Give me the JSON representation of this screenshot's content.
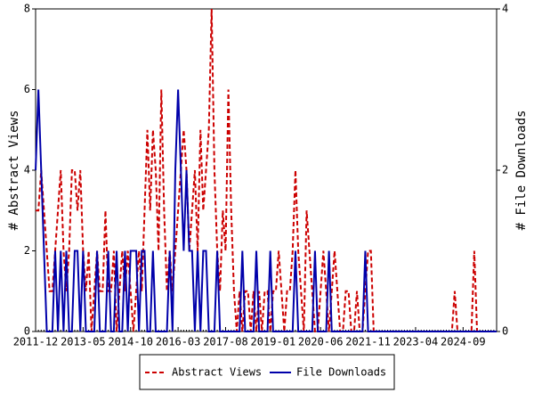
{
  "chart_data": {
    "type": "line",
    "categories": [
      "2011-12",
      null,
      null,
      null,
      null,
      null,
      null,
      null,
      null,
      null,
      null,
      null,
      null,
      null,
      null,
      null,
      null,
      "2013-05",
      null,
      null,
      null,
      null,
      null,
      null,
      null,
      null,
      null,
      null,
      null,
      null,
      null,
      null,
      null,
      null,
      "2014-10",
      null,
      null,
      null,
      null,
      null,
      null,
      null,
      null,
      null,
      null,
      null,
      null,
      null,
      null,
      null,
      null,
      "2016-03",
      null,
      null,
      null,
      null,
      null,
      null,
      null,
      null,
      null,
      null,
      null,
      null,
      null,
      null,
      null,
      null,
      "2017-08",
      null,
      null,
      null,
      null,
      null,
      null,
      null,
      null,
      null,
      null,
      null,
      null,
      null,
      null,
      null,
      null,
      "2019-01",
      null,
      null,
      null,
      null,
      null,
      null,
      null,
      null,
      null,
      null,
      null,
      null,
      null,
      null,
      null,
      null,
      "2020-06",
      null,
      null,
      null,
      null,
      null,
      null,
      null,
      null,
      null,
      null,
      null,
      null,
      null,
      null,
      null,
      null,
      "2021-11",
      null,
      null,
      null,
      null,
      null,
      null,
      null,
      null,
      null,
      null,
      null,
      null,
      null,
      null,
      null,
      null,
      "2023-04",
      null,
      null,
      null,
      null,
      null,
      null,
      null,
      null,
      null,
      null,
      null,
      null,
      null,
      null,
      null,
      null,
      "2024-09",
      null,
      null,
      null,
      null,
      null,
      null,
      null,
      null,
      null,
      null,
      null,
      null
    ],
    "series": [
      {
        "name": "Abstract Views",
        "color": "#cc0000",
        "axis": "y",
        "values": [
          3,
          3,
          4,
          3,
          2,
          1,
          1,
          2,
          3,
          4,
          2,
          1,
          2,
          4,
          4,
          3,
          4,
          2,
          1,
          2,
          0,
          1,
          2,
          1,
          1,
          3,
          1,
          1,
          2,
          0,
          1,
          2,
          1,
          2,
          1,
          0,
          1,
          2,
          1,
          3,
          5,
          3,
          5,
          4,
          2,
          6,
          3,
          1,
          2,
          1,
          2,
          3,
          4,
          5,
          4,
          2,
          3,
          4,
          2,
          5,
          3,
          4,
          5,
          8,
          4,
          2,
          1,
          3,
          2,
          6,
          3,
          1,
          0,
          1,
          0,
          1,
          1,
          0,
          1,
          0,
          1,
          0,
          1,
          1,
          0,
          1,
          1,
          2,
          1,
          0,
          1,
          1,
          2,
          4,
          2,
          1,
          0,
          3,
          2,
          1,
          0,
          0,
          1,
          2,
          1,
          0,
          1,
          2,
          1,
          0,
          0,
          1,
          1,
          0,
          0,
          1,
          0,
          0,
          1,
          2,
          2,
          0,
          0,
          0,
          0,
          0,
          0,
          0,
          0,
          0,
          0,
          0,
          0,
          0,
          0,
          0,
          0,
          0,
          0,
          0,
          0,
          0,
          0,
          0,
          0,
          0,
          0,
          0,
          0,
          0,
          1,
          0,
          0,
          0,
          0,
          0,
          0,
          2,
          0,
          0,
          0,
          0,
          0,
          0,
          0,
          0
        ]
      },
      {
        "name": "File Downloads",
        "color": "#0000aa",
        "axis": "y2",
        "values": [
          2,
          3,
          2,
          1,
          0,
          0,
          0,
          1,
          0,
          1,
          0,
          1,
          0,
          0,
          1,
          1,
          0,
          1,
          0,
          0,
          0,
          0,
          1,
          0,
          0,
          0,
          1,
          0,
          0,
          1,
          0,
          0,
          1,
          0,
          1,
          1,
          1,
          0,
          1,
          1,
          0,
          0,
          1,
          0,
          0,
          0,
          0,
          0,
          1,
          0,
          2,
          3,
          2,
          1,
          2,
          1,
          1,
          0,
          1,
          0,
          1,
          1,
          0,
          0,
          0,
          1,
          0,
          0,
          0,
          0,
          0,
          0,
          0,
          0,
          1,
          0,
          0,
          0,
          0,
          1,
          0,
          0,
          0,
          0,
          1,
          0,
          0,
          0,
          0,
          0,
          0,
          0,
          0,
          1,
          0,
          0,
          0,
          0,
          0,
          0,
          1,
          0,
          0,
          0,
          0,
          1,
          0,
          0,
          0,
          0,
          0,
          0,
          0,
          0,
          0,
          0,
          0,
          0,
          1,
          0,
          0,
          0,
          0,
          0,
          0,
          0,
          0,
          0,
          0,
          0,
          0,
          0,
          0,
          0,
          0,
          0,
          0,
          0,
          0,
          0,
          0,
          0,
          0,
          0,
          0,
          0,
          0,
          0,
          0,
          0,
          0,
          0,
          0,
          0,
          0,
          0,
          0,
          0,
          0,
          0,
          0,
          0,
          0,
          0,
          0,
          0
        ]
      }
    ],
    "ylabel": "# Abstract Views",
    "y2label": "# File Downloads",
    "ylim": [
      0,
      8
    ],
    "yticks": [
      0,
      2,
      4,
      6,
      8
    ],
    "y2lim": [
      0,
      4
    ],
    "y2ticks": [
      0,
      2,
      4
    ]
  }
}
